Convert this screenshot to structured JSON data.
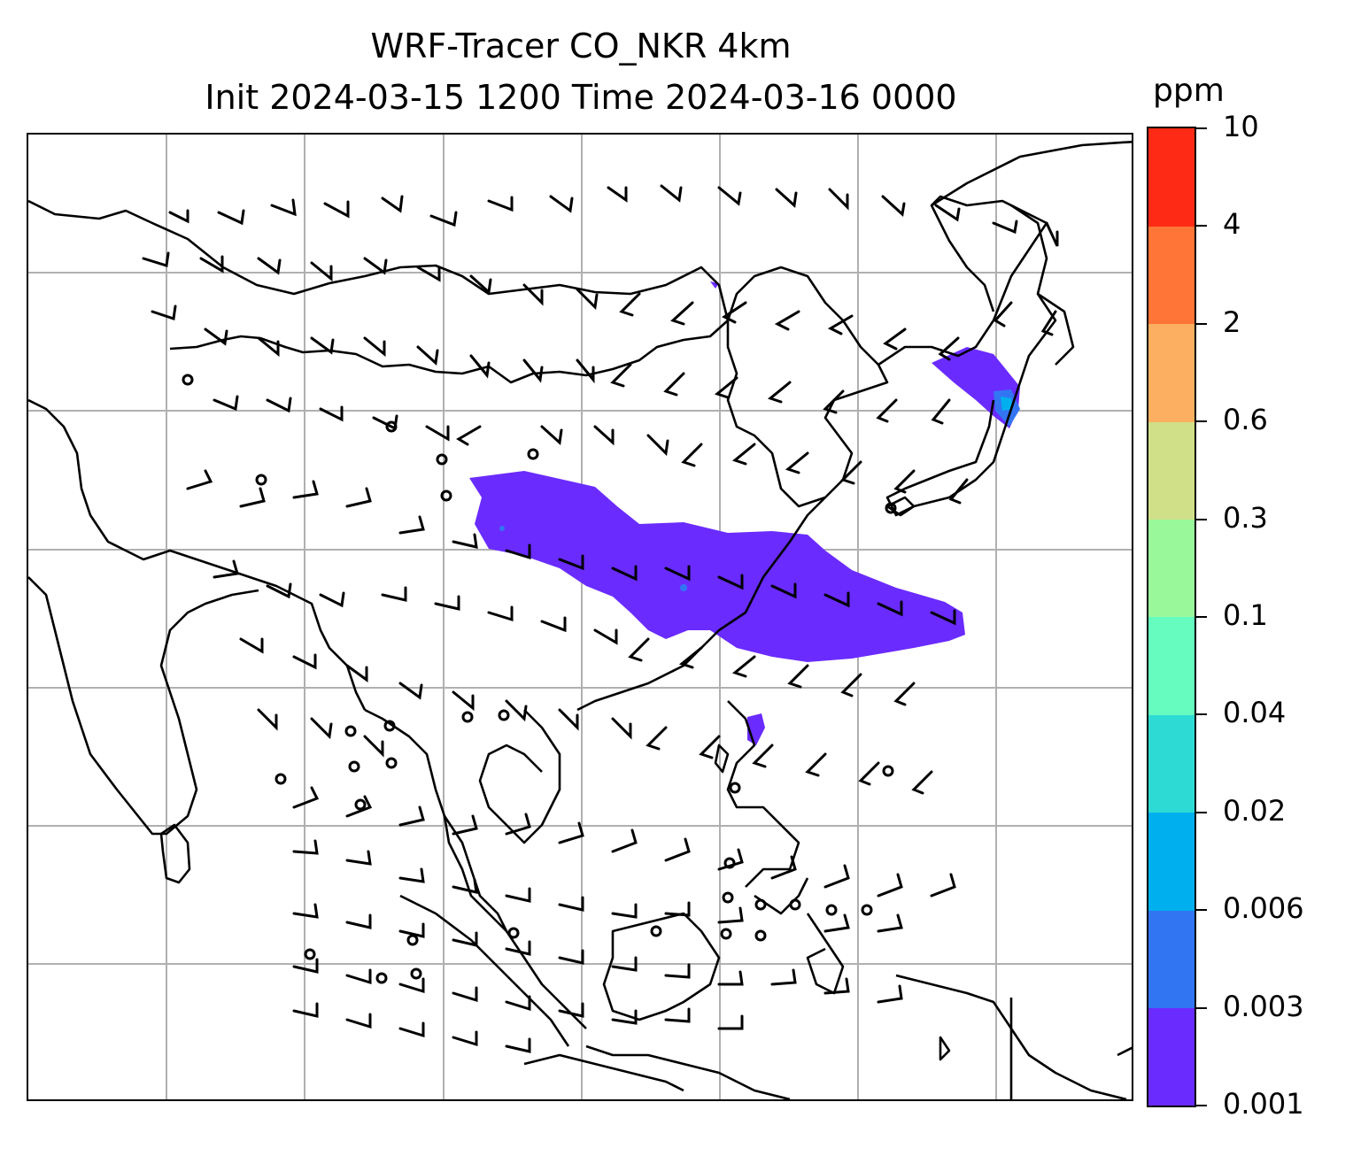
{
  "title": {
    "line1": "WRF-Tracer CO_NKR 4km",
    "line2": "Init 2024-03-15 1200 Time 2024-03-16 0000"
  },
  "colorbar": {
    "unit": "ppm",
    "ticks": [
      "0.001",
      "0.003",
      "0.006",
      "0.02",
      "0.04",
      "0.1",
      "0.3",
      "0.6",
      "2",
      "4",
      "10"
    ],
    "colors": [
      "#6a2bff",
      "#3275f2",
      "#00b0ee",
      "#2ddbd4",
      "#66fbbf",
      "#99f99a",
      "#cfe088",
      "#fcaf61",
      "#ff7437",
      "#ff2a15"
    ]
  },
  "map": {
    "variable": "CO_NKR tracer concentration",
    "overlay": "wind barbs",
    "coastline_color": "#000000",
    "gridline_color": "#b0b0b0",
    "plume_color": "#6a2bff",
    "plume_core_color": "#00b0ee"
  }
}
